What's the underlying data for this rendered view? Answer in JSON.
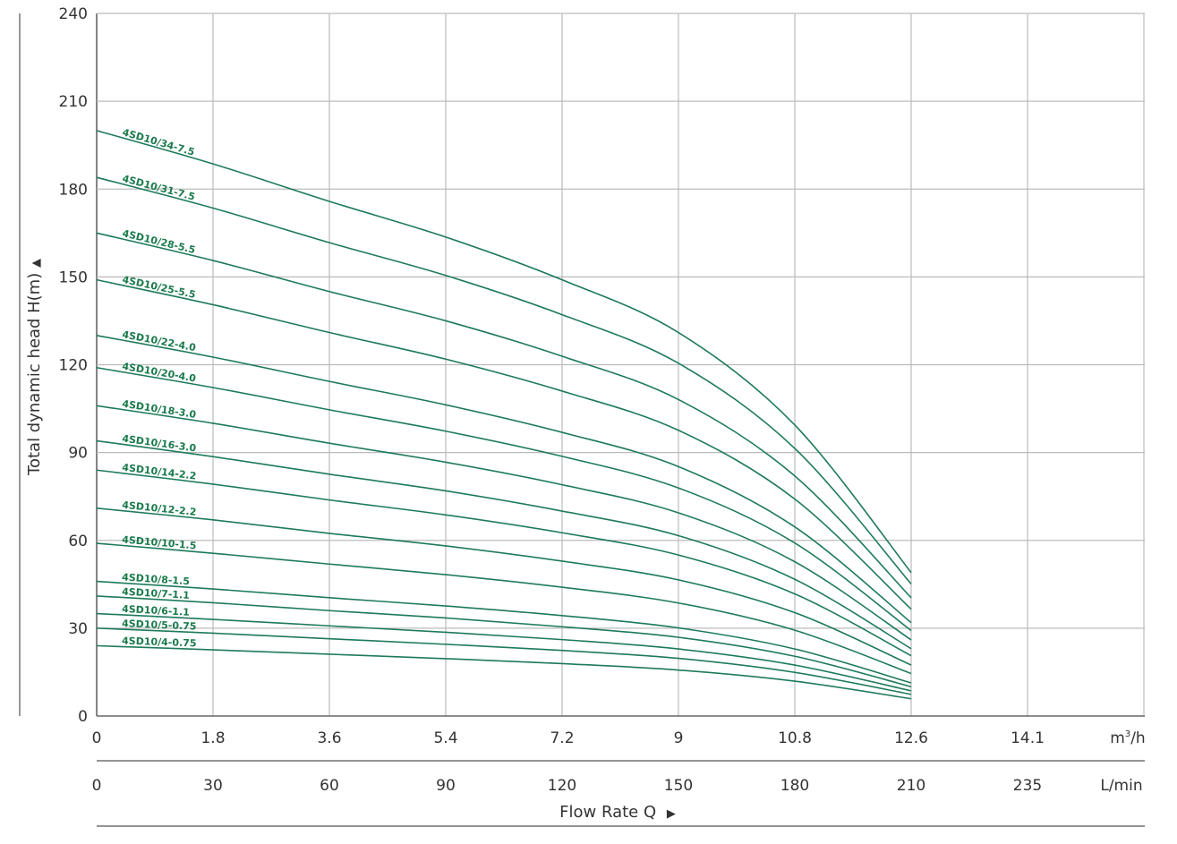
{
  "chart_data": {
    "type": "line",
    "title": "",
    "ylabel": "Total dynamic head H(m)",
    "ylabel_arrow": "▲",
    "xlabel": "Flow Rate Q",
    "xlabel_arrow": "▶",
    "ylim": [
      0,
      240
    ],
    "yticks": [
      "0",
      "30",
      "60",
      "90",
      "120",
      "150",
      "180",
      "210",
      "240"
    ],
    "xlim": [
      0,
      16.2
    ],
    "x_unit_primary": "m³/h",
    "x_unit_primary_base": "m",
    "x_unit_primary_sup": "3",
    "x_unit_primary_tail": "/h",
    "xticks_primary": [
      "0",
      "1.8",
      "3.6",
      "5.4",
      "7.2",
      "9",
      "10.8",
      "12.6",
      "14.1"
    ],
    "x_unit_secondary": "L/min",
    "xticks_secondary": [
      "0",
      "30",
      "60",
      "90",
      "120",
      "150",
      "180",
      "210",
      "235"
    ],
    "grid": true,
    "line_color": "#1d7a5a",
    "x": [
      0,
      1.8,
      3.6,
      5.4,
      7.2,
      9,
      10.8,
      12.6
    ],
    "series": [
      {
        "name": "4SD10/34-7.5",
        "values": [
          200,
          188.6,
          175.8,
          163.6,
          149,
          131,
          99.4,
          49
        ]
      },
      {
        "name": "4SD10/31-7.5",
        "values": [
          184,
          173.5,
          161.7,
          150.5,
          137.1,
          120.5,
          91.4,
          45.1
        ]
      },
      {
        "name": "4SD10/28-5.5",
        "values": [
          165,
          155.6,
          145,
          135,
          122.9,
          108.1,
          82,
          40.4
        ]
      },
      {
        "name": "4SD10/25-5.5",
        "values": [
          149,
          140.5,
          131,
          121.9,
          111,
          97.6,
          74.1,
          36.5
        ]
      },
      {
        "name": "4SD10/22-4.0",
        "values": [
          130,
          122.6,
          114.3,
          106.3,
          96.9,
          85.2,
          64.6,
          31.9
        ]
      },
      {
        "name": "4SD10/20-4.0",
        "values": [
          119,
          112.2,
          104.6,
          97.3,
          88.7,
          77.9,
          59.1,
          29.2
        ]
      },
      {
        "name": "4SD10/18-3.0",
        "values": [
          106,
          100,
          93.2,
          86.7,
          79,
          69.4,
          52.7,
          26
        ]
      },
      {
        "name": "4SD10/16-3.0",
        "values": [
          94,
          88.6,
          82.6,
          76.9,
          70,
          61.6,
          46.7,
          23
        ]
      },
      {
        "name": "4SD10/14-2.2",
        "values": [
          84,
          79.2,
          73.8,
          68.7,
          62.6,
          55,
          41.7,
          20.6
        ]
      },
      {
        "name": "4SD10/12-2.2",
        "values": [
          71,
          67,
          62.4,
          58.1,
          52.9,
          46.5,
          35.3,
          17.4
        ]
      },
      {
        "name": "4SD10/10-1.5",
        "values": [
          59,
          55.6,
          51.9,
          48.3,
          44,
          38.6,
          29.3,
          14.5
        ]
      },
      {
        "name": "4SD10/8-1.5",
        "values": [
          46,
          43.4,
          40.4,
          37.6,
          34.3,
          30.1,
          22.9,
          11.3
        ]
      },
      {
        "name": "4SD10/7-1.1",
        "values": [
          41,
          38.7,
          36,
          33.5,
          30.5,
          26.9,
          20.4,
          10
        ]
      },
      {
        "name": "4SD10/6-1.1",
        "values": [
          35,
          33,
          30.8,
          28.6,
          26.1,
          22.9,
          17.4,
          8.6
        ]
      },
      {
        "name": "4SD10/5-0.75",
        "values": [
          30,
          28.3,
          26.4,
          24.5,
          22.4,
          19.7,
          14.9,
          7.4
        ]
      },
      {
        "name": "4SD10/4-0.75",
        "values": [
          24,
          22.6,
          21.1,
          19.6,
          17.9,
          15.7,
          11.9,
          5.9
        ]
      }
    ]
  }
}
